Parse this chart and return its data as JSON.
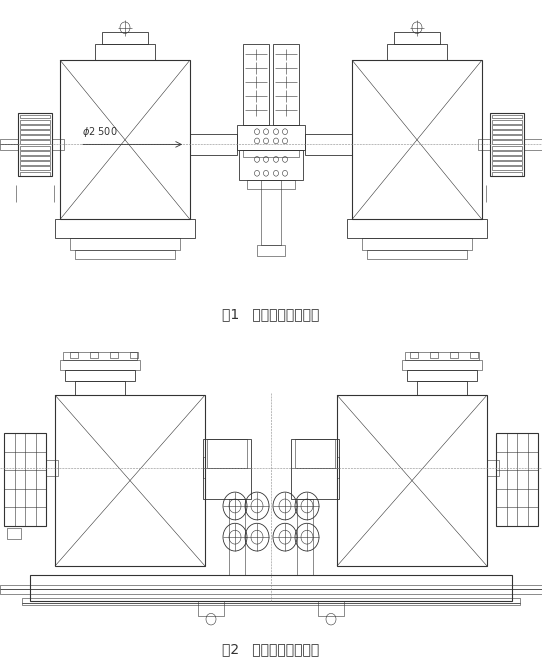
{
  "title1": "图1   行星三减速器方案",
  "title2": "图2   行星大减速器方案",
  "bg_color": "#ffffff",
  "line_color": "#333333",
  "fig_width": 5.42,
  "fig_height": 6.7,
  "dpi": 100
}
